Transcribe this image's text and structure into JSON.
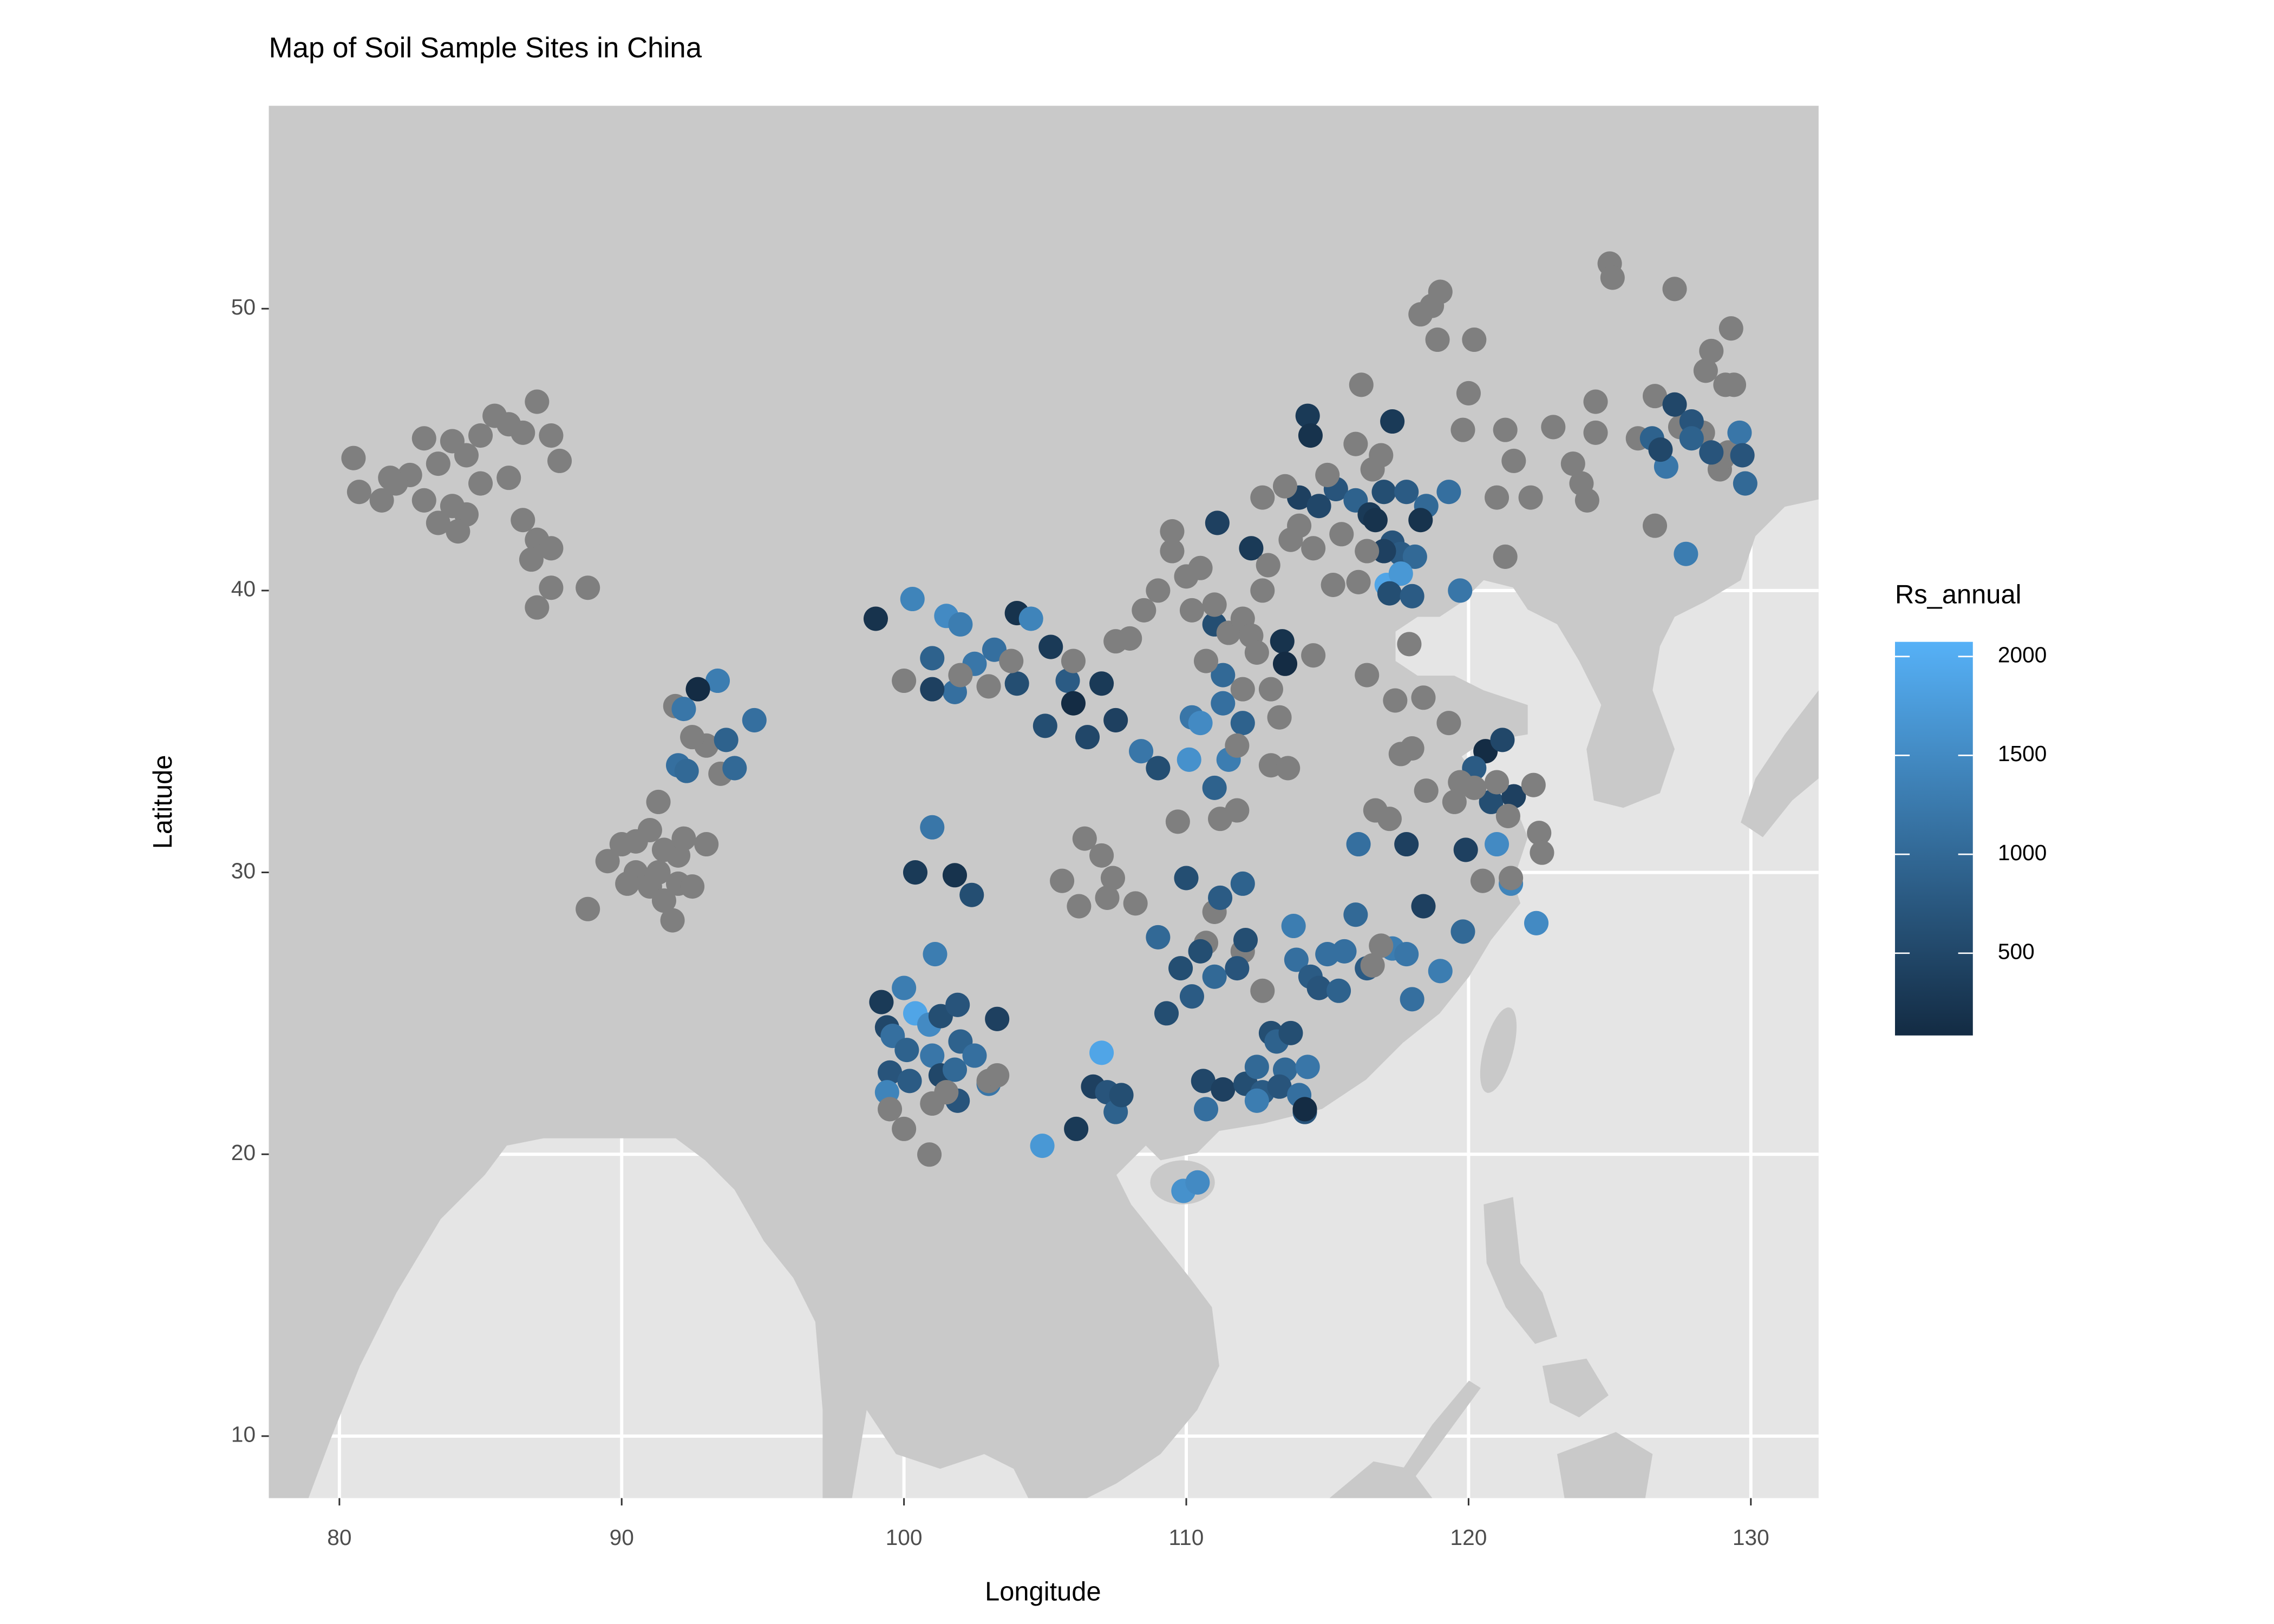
{
  "chart_data": {
    "type": "scatter",
    "title": "Map of Soil Sample Sites in China",
    "x_label": "Longitude",
    "y_label": "Latitude",
    "xlim": [
      77.5,
      132.4
    ],
    "ylim": [
      7.8,
      57.2
    ],
    "xticks": [
      80,
      90,
      100,
      110,
      120,
      130
    ],
    "yticks": [
      10,
      20,
      30,
      40,
      50
    ],
    "grid": true,
    "sea_color": "#e5e5e5",
    "land_color": "#c9c9c9",
    "na_color": "#7f7f7f",
    "colorbar": {
      "title": "Rs_annual",
      "lim": [
        84,
        2074
      ],
      "ticks": [
        500,
        1000,
        1500,
        2000
      ],
      "low_color": "#132b43",
      "high_color": "#56b1f7"
    },
    "x": [
      80.5,
      80.7,
      81.5,
      81.8,
      82.5,
      83,
      83.5,
      84,
      84.5,
      85,
      85.5,
      86,
      86.5,
      87,
      87.5,
      87.8,
      86,
      85,
      84.5,
      83.5,
      83,
      84,
      86.5,
      87,
      87.5,
      86.8,
      87.5,
      87,
      88.8,
      82,
      84.2,
      88.8,
      89.5,
      90,
      90.5,
      91,
      91,
      91.5,
      92,
      92,
      90.5,
      91.3,
      91.5,
      92.5,
      93,
      91.8,
      90.2,
      91.3,
      92.2,
      91.9,
      93,
      93.5,
      92.5,
      93.4,
      92.2,
      92,
      92.3,
      94.7,
      93.7,
      94,
      92.7,
      99,
      100.3,
      101,
      101.5,
      102,
      102.5,
      103.2,
      101.8,
      101,
      104,
      104.5,
      105.2,
      104,
      105.8,
      106,
      107,
      105,
      107.5,
      106.5,
      108.4,
      109,
      110.2,
      110.5,
      110.1,
      111,
      111.5,
      112,
      111.3,
      111.3,
      111,
      111.1,
      112.3,
      113.4,
      113.5,
      100,
      102,
      103,
      103.8,
      106,
      107.5,
      108,
      108.5,
      109,
      109.5,
      110,
      110.2,
      110.5,
      111,
      111.5,
      112,
      112.3,
      112.7,
      112.5,
      113,
      113.3,
      112,
      111.8,
      113,
      113.6,
      111.8,
      111.2,
      109.7,
      109.5,
      112.7,
      110.7,
      106.4,
      107,
      105.6,
      107.4,
      107.2,
      106.2,
      108.2,
      111,
      110.7,
      112,
      112.7,
      99.2,
      99.4,
      99.6,
      100,
      100.4,
      100.9,
      101.3,
      101.9,
      101,
      100.1,
      99.5,
      99.4,
      100.2,
      101.3,
      101.9,
      102,
      102.5,
      103,
      103.3,
      101.1,
      101,
      100.4,
      101.8,
      102.4,
      101.8,
      99.5,
      100,
      100.9,
      101,
      101.5,
      103,
      103.3,
      104.9,
      106.1,
      107,
      106.7,
      107.2,
      107.5,
      107.7,
      109.9,
      110.4,
      110.7,
      110.6,
      111.3,
      112.1,
      112.7,
      112.5,
      113.5,
      114.2,
      114.3,
      113,
      113.2,
      113.7,
      112.5,
      113.3,
      114,
      114.2,
      109,
      109.8,
      109.3,
      110.2,
      110.5,
      111,
      111.8,
      112.1,
      112,
      111.2,
      110,
      113.8,
      113.9,
      114.4,
      114.7,
      115,
      115.4,
      115.6,
      116,
      116.4,
      117.3,
      117.8,
      118,
      119,
      119.8,
      118.4,
      117.8,
      116.1,
      121.5,
      122.4,
      120.6,
      121.2,
      120.2,
      120.8,
      121,
      119.9,
      121.6,
      114.5,
      116.4,
      117.4,
      118,
      117.6,
      118.5,
      119.7,
      119.5,
      119.3,
      120.2,
      121,
      121.4,
      122.3,
      122.5,
      122.6,
      120.5,
      121.5,
      116.7,
      117.2,
      116.9,
      116.6,
      118.4,
      117.9,
      114.3,
      114.4,
      117.3,
      114,
      114.7,
      115.3,
      116,
      116.5,
      117,
      117.8,
      118.5,
      119.3,
      117.3,
      117.6,
      118.1,
      117.1,
      117.6,
      117.2,
      118,
      119.7,
      116.7,
      118.3,
      117,
      112.9,
      113.5,
      114,
      114.5,
      115,
      115.5,
      116,
      116.6,
      116.1,
      116.4,
      115.2,
      113.7,
      116.9,
      118.3,
      118.7,
      119,
      118.9,
      120.2,
      119.8,
      121.3,
      121.6,
      122.2,
      121,
      121.3,
      123,
      123.7,
      124,
      124.5,
      124.5,
      125,
      125.1,
      127.3,
      129.3,
      128.6,
      128.4,
      129.1,
      129.4,
      126.6,
      127.5,
      128.3,
      129.2,
      128.9,
      129,
      126,
      126.6,
      124.2,
      116.2,
      120,
      126.5,
      127,
      127.3,
      127.9,
      127.9,
      128.6,
      129.6,
      129.7,
      129.8,
      127.7,
      126.8
    ],
    "y": [
      44.7,
      43.5,
      43.2,
      44,
      44.1,
      45.4,
      44.5,
      45.3,
      44.8,
      45.5,
      46.2,
      45.9,
      45.6,
      46.7,
      45.5,
      44.6,
      44,
      43.8,
      42.7,
      42.4,
      43.2,
      43,
      42.5,
      41.8,
      41.5,
      41.1,
      40.1,
      39.4,
      40.1,
      43.8,
      42.1,
      28.7,
      30.4,
      31,
      30,
      31.5,
      29.5,
      30.8,
      29.6,
      30.6,
      31.1,
      32.5,
      29,
      29.5,
      31,
      28.3,
      29.6,
      30,
      31.2,
      35.9,
      34.5,
      33.5,
      34.8,
      36.8,
      35.8,
      33.8,
      33.6,
      35.4,
      34.7,
      33.7,
      36.5,
      39,
      39.7,
      37.6,
      39.1,
      38.8,
      37.4,
      37.9,
      36.4,
      36.5,
      39.2,
      39,
      38,
      36.7,
      36.8,
      36,
      36.7,
      35.2,
      35.4,
      34.8,
      34.3,
      33.7,
      35.5,
      35.3,
      34,
      33,
      34,
      35.3,
      37,
      36,
      38.8,
      42.4,
      41.5,
      38.2,
      37.4,
      36.8,
      37,
      36.6,
      37.5,
      37.5,
      38.2,
      38.3,
      39.3,
      40,
      41.4,
      40.5,
      39.3,
      40.8,
      39.5,
      38.5,
      39,
      38.4,
      40,
      37.8,
      36.5,
      35.5,
      36.5,
      34.5,
      33.8,
      33.7,
      32.2,
      31.9,
      31.8,
      42.1,
      43.3,
      37.5,
      31.2,
      30.6,
      29.7,
      29.8,
      29.1,
      28.8,
      28.9,
      28.6,
      27.5,
      27.2,
      25.8,
      25.4,
      24.5,
      24.2,
      25.9,
      25,
      24.6,
      24.9,
      25.3,
      23.5,
      23.7,
      22.9,
      22.2,
      22.6,
      22.8,
      21.9,
      24,
      23.5,
      22.5,
      24.8,
      27.1,
      31.6,
      30,
      29.9,
      29.2,
      23,
      21.6,
      20.9,
      19.99,
      21.8,
      22.2,
      22.6,
      22.8,
      20.3,
      20.9,
      23.6,
      22.4,
      22.2,
      21.5,
      22.1,
      18.7,
      19,
      21.6,
      22.6,
      22.3,
      22.5,
      22.2,
      21.9,
      23,
      21.5,
      23.1,
      24.3,
      24,
      24.3,
      23.1,
      22.4,
      22.1,
      21.6,
      27.7,
      26.6,
      25,
      25.6,
      27.2,
      26.3,
      26.6,
      27.6,
      29.6,
      29.1,
      29.8,
      28.1,
      26.9,
      26.3,
      25.9,
      27.1,
      25.8,
      27.2,
      28.5,
      26.6,
      27.3,
      27.1,
      25.5,
      26.5,
      27.9,
      28.8,
      31,
      31,
      29.6,
      28.2,
      34.3,
      34.7,
      33.7,
      32.5,
      31,
      30.8,
      32.7,
      37.7,
      37,
      36.1,
      34.4,
      34.2,
      32.9,
      33.2,
      32.5,
      35.3,
      33,
      33.2,
      32,
      33.1,
      31.4,
      30.7,
      29.7,
      29.8,
      32.2,
      31.9,
      27.4,
      26.7,
      36.2,
      38.1,
      46.2,
      45.5,
      46,
      43.3,
      43,
      43.6,
      43.2,
      42.7,
      43.5,
      43.5,
      43,
      43.5,
      41.7,
      41.3,
      41.2,
      40.2,
      40.6,
      39.9,
      39.8,
      40,
      42.5,
      42.5,
      41.4,
      40.9,
      43.7,
      42.3,
      41.5,
      44.1,
      42,
      45.2,
      44.3,
      40.3,
      41.4,
      40.2,
      41.8,
      44.8,
      49.8,
      50.1,
      50.6,
      48.9,
      48.9,
      45.7,
      45.7,
      44.6,
      43.3,
      43.3,
      41.2,
      45.8,
      44.5,
      43.8,
      45.6,
      46.7,
      51.6,
      51.1,
      50.7,
      49.3,
      48.5,
      47.8,
      47.3,
      47.3,
      46.9,
      45.8,
      45.6,
      44.9,
      44.3,
      44.7,
      45.4,
      42.3,
      43.2,
      47.3,
      47,
      45.4,
      44.4,
      46.6,
      46,
      45.4,
      44.9,
      45.6,
      44.8,
      43.8,
      41.3,
      45
    ],
    "values": [
      null,
      null,
      null,
      null,
      null,
      null,
      null,
      null,
      null,
      null,
      null,
      null,
      null,
      null,
      null,
      null,
      null,
      null,
      null,
      null,
      null,
      null,
      null,
      null,
      null,
      null,
      null,
      null,
      null,
      null,
      null,
      null,
      null,
      null,
      null,
      null,
      null,
      null,
      null,
      null,
      null,
      null,
      null,
      null,
      null,
      null,
      null,
      null,
      null,
      null,
      null,
      null,
      null,
      1300,
      1200,
      1100,
      1000,
      1100,
      900,
      1000,
      100,
      200,
      1400,
      900,
      1500,
      1300,
      1200,
      1100,
      1100,
      400,
      200,
      1400,
      300,
      600,
      800,
      100,
      300,
      600,
      400,
      500,
      1200,
      600,
      1200,
      1500,
      1600,
      900,
      1300,
      900,
      1000,
      1100,
      600,
      400,
      300,
      200,
      100,
      null,
      null,
      null,
      null,
      null,
      null,
      null,
      null,
      null,
      null,
      null,
      null,
      null,
      null,
      null,
      null,
      null,
      null,
      null,
      null,
      null,
      null,
      null,
      null,
      null,
      null,
      null,
      null,
      null,
      null,
      null,
      null,
      null,
      null,
      null,
      null,
      null,
      null,
      null,
      null,
      null,
      null,
      300,
      500,
      1100,
      1300,
      1900,
      1500,
      600,
      700,
      1200,
      900,
      700,
      1400,
      800,
      500,
      700,
      900,
      1100,
      1200,
      400,
      1300,
      1200,
      300,
      200,
      600,
      1000,
      null,
      null,
      null,
      null,
      null,
      null,
      null,
      1700,
      300,
      1900,
      400,
      700,
      900,
      600,
      1600,
      1500,
      1100,
      500,
      400,
      600,
      800,
      1300,
      1000,
      700,
      1200,
      600,
      900,
      600,
      1000,
      700,
      1100,
      100,
      1000,
      600,
      600,
      800,
      600,
      1000,
      700,
      600,
      900,
      800,
      600,
      1300,
      1100,
      800,
      700,
      1100,
      900,
      1100,
      1000,
      800,
      1300,
      1200,
      1100,
      1300,
      1000,
      400,
      400,
      1100,
      1400,
      1500,
      100,
      500,
      800,
      600,
      1500,
      400,
      400,
      null,
      null,
      null,
      null,
      null,
      null,
      null,
      null,
      null,
      null,
      null,
      null,
      null,
      null,
      null,
      null,
      null,
      null,
      null,
      null,
      null,
      null,
      null,
      300,
      200,
      300,
      400,
      500,
      700,
      900,
      300,
      600,
      800,
      1000,
      1100,
      700,
      800,
      1000,
      1900,
      1700,
      600,
      800,
      1200,
      200,
      200,
      400,
      null,
      null,
      null,
      null,
      null,
      null,
      null,
      null,
      null,
      null,
      null,
      null,
      null,
      null,
      null,
      null,
      null,
      null,
      null,
      null,
      null,
      null,
      null,
      null,
      null,
      null,
      null,
      null,
      null,
      null,
      null,
      null,
      null,
      null,
      null,
      null,
      null,
      null,
      null,
      null,
      null,
      null,
      null,
      null,
      null,
      null,
      null,
      null,
      900,
      1200,
      500,
      700,
      900,
      700,
      1200,
      700,
      1000,
      1300,
      500
    ]
  }
}
